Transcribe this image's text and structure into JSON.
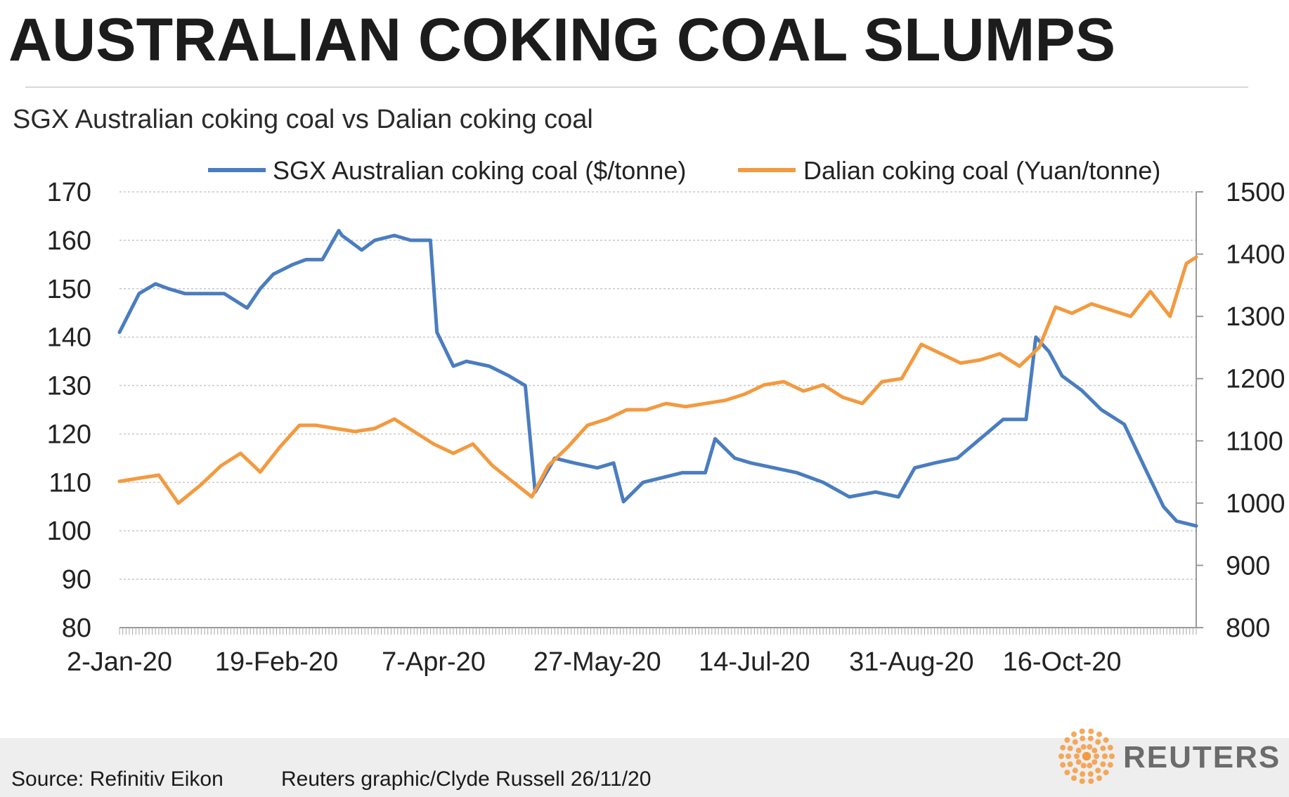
{
  "header": {
    "title": "AUSTRALIAN COKING COAL SLUMPS",
    "subtitle": "SGX Australian coking coal vs Dalian coking coal"
  },
  "footer": {
    "source": "Source: Refinitiv Eikon",
    "credit": "Reuters graphic/Clyde Russell 26/11/20",
    "brand": "REUTERS"
  },
  "colors": {
    "sgx": "#4A7DC0",
    "dalian": "#F39A3F",
    "grid": "#c8c8c8",
    "axis": "#9a9a9a",
    "brand_logo": "#F39A3F"
  },
  "icons": [
    "reuters-logo-icon"
  ],
  "chart_data": {
    "type": "line",
    "x_tick_labels": [
      "2-Jan-20",
      "19-Feb-20",
      "7-Apr-20",
      "27-May-20",
      "14-Jul-20",
      "31-Aug-20",
      "16-Oct-20"
    ],
    "y_left": {
      "min": 80,
      "max": 170,
      "step": 10,
      "ticks": [
        "170",
        "160",
        "150",
        "140",
        "130",
        "120",
        "110",
        "100",
        "90",
        "80"
      ]
    },
    "y_right": {
      "min": 800,
      "max": 1500,
      "step": 100,
      "ticks": [
        "1500",
        "1400",
        "1300",
        "1200",
        "1100",
        "1000",
        "900",
        "800"
      ]
    },
    "grid": true,
    "legend_position": "top",
    "series": [
      {
        "name": "SGX Australian coking coal ($/tonne)",
        "axis": "left",
        "x": [
          "2020-01-02",
          "2020-01-08",
          "2020-01-13",
          "2020-01-17",
          "2020-01-22",
          "2020-01-28",
          "2020-02-03",
          "2020-02-10",
          "2020-02-14",
          "2020-02-18",
          "2020-02-24",
          "2020-02-28",
          "2020-03-04",
          "2020-03-09",
          "2020-03-10",
          "2020-03-16",
          "2020-03-20",
          "2020-03-26",
          "2020-03-31",
          "2020-04-03",
          "2020-04-06",
          "2020-04-08",
          "2020-04-13",
          "2020-04-17",
          "2020-04-24",
          "2020-04-30",
          "2020-05-05",
          "2020-05-08",
          "2020-05-14",
          "2020-05-20",
          "2020-05-27",
          "2020-06-01",
          "2020-06-04",
          "2020-06-10",
          "2020-06-16",
          "2020-06-22",
          "2020-06-29",
          "2020-07-02",
          "2020-07-08",
          "2020-07-13",
          "2020-07-20",
          "2020-07-27",
          "2020-08-04",
          "2020-08-12",
          "2020-08-20",
          "2020-08-27",
          "2020-09-01",
          "2020-09-07",
          "2020-09-14",
          "2020-09-21",
          "2020-09-28",
          "2020-10-05",
          "2020-10-08",
          "2020-10-12",
          "2020-10-16",
          "2020-10-22",
          "2020-10-28",
          "2020-11-04",
          "2020-11-11",
          "2020-11-16",
          "2020-11-20",
          "2020-11-26"
        ],
        "values": [
          141,
          149,
          151,
          150,
          149,
          149,
          149,
          146,
          150,
          153,
          155,
          156,
          156,
          162,
          161,
          158,
          160,
          161,
          160,
          160,
          160,
          141,
          134,
          135,
          134,
          132,
          130,
          108,
          115,
          114,
          113,
          114,
          106,
          110,
          111,
          112,
          112,
          119,
          115,
          114,
          113,
          112,
          110,
          107,
          108,
          107,
          113,
          114,
          115,
          119,
          123,
          123,
          140,
          137,
          132,
          129,
          125,
          122,
          112,
          105,
          102,
          101
        ]
      },
      {
        "name": "Dalian coking coal (Yuan/tonne)",
        "axis": "right",
        "x": [
          "2020-01-02",
          "2020-01-08",
          "2020-01-14",
          "2020-01-20",
          "2020-01-27",
          "2020-02-02",
          "2020-02-08",
          "2020-02-14",
          "2020-02-20",
          "2020-02-26",
          "2020-03-02",
          "2020-03-08",
          "2020-03-14",
          "2020-03-20",
          "2020-03-26",
          "2020-04-01",
          "2020-04-07",
          "2020-04-13",
          "2020-04-19",
          "2020-04-25",
          "2020-05-01",
          "2020-05-07",
          "2020-05-12",
          "2020-05-18",
          "2020-05-24",
          "2020-05-30",
          "2020-06-05",
          "2020-06-11",
          "2020-06-17",
          "2020-06-23",
          "2020-06-29",
          "2020-07-05",
          "2020-07-11",
          "2020-07-17",
          "2020-07-23",
          "2020-07-29",
          "2020-08-04",
          "2020-08-10",
          "2020-08-16",
          "2020-08-22",
          "2020-08-28",
          "2020-09-03",
          "2020-09-09",
          "2020-09-15",
          "2020-09-21",
          "2020-09-27",
          "2020-10-03",
          "2020-10-09",
          "2020-10-14",
          "2020-10-19",
          "2020-10-25",
          "2020-10-31",
          "2020-11-06",
          "2020-11-12",
          "2020-11-18",
          "2020-11-23",
          "2020-11-26"
        ],
        "values": [
          1035,
          1040,
          1045,
          1000,
          1030,
          1060,
          1080,
          1050,
          1090,
          1125,
          1125,
          1120,
          1115,
          1120,
          1135,
          1115,
          1095,
          1080,
          1095,
          1060,
          1035,
          1010,
          1060,
          1090,
          1125,
          1135,
          1150,
          1150,
          1160,
          1155,
          1160,
          1165,
          1175,
          1190,
          1195,
          1180,
          1190,
          1170,
          1160,
          1195,
          1200,
          1255,
          1240,
          1225,
          1230,
          1240,
          1220,
          1250,
          1315,
          1305,
          1320,
          1310,
          1300,
          1340,
          1300,
          1385,
          1395
        ]
      }
    ]
  }
}
